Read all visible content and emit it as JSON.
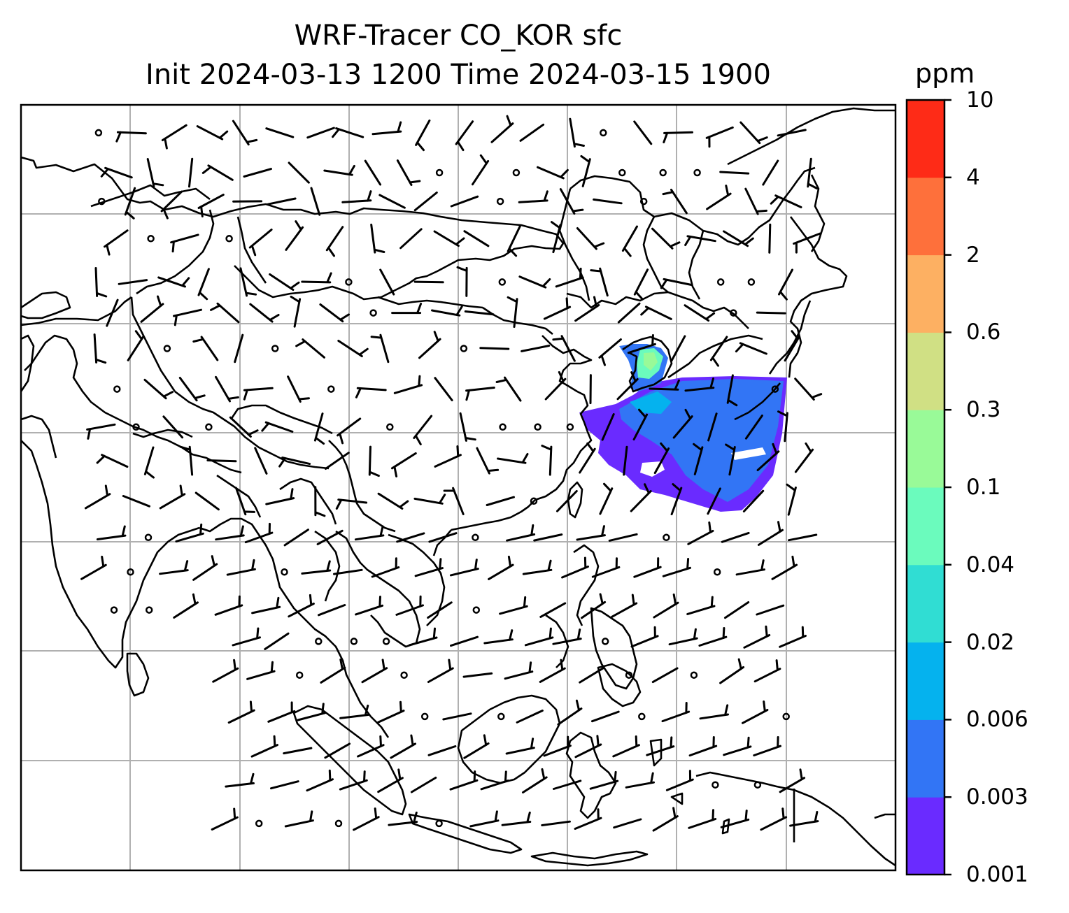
{
  "title": {
    "line1": "WRF-Tracer CO_KOR sfc",
    "line2": "Init 2024-03-13 1200 Time 2024-03-15 1900"
  },
  "colorbar": {
    "unit": "ppm",
    "levels": [
      "0.001",
      "0.003",
      "0.006",
      "0.02",
      "0.04",
      "0.1",
      "0.3",
      "0.6",
      "2",
      "4",
      "10"
    ],
    "colors": [
      "#6a2bff",
      "#3275f5",
      "#05b2ee",
      "#30ddd3",
      "#6bfbbd",
      "#99fa98",
      "#d0e084",
      "#fdb062",
      "#fe703b",
      "#fe2b17"
    ]
  },
  "map": {
    "gridlines": true,
    "plume_colors": {
      "low": "#6a2bff",
      "mid": "#3275f5",
      "high": "#05b2ee",
      "peak": "#6bfbbd",
      "max": "#99fa98"
    }
  }
}
